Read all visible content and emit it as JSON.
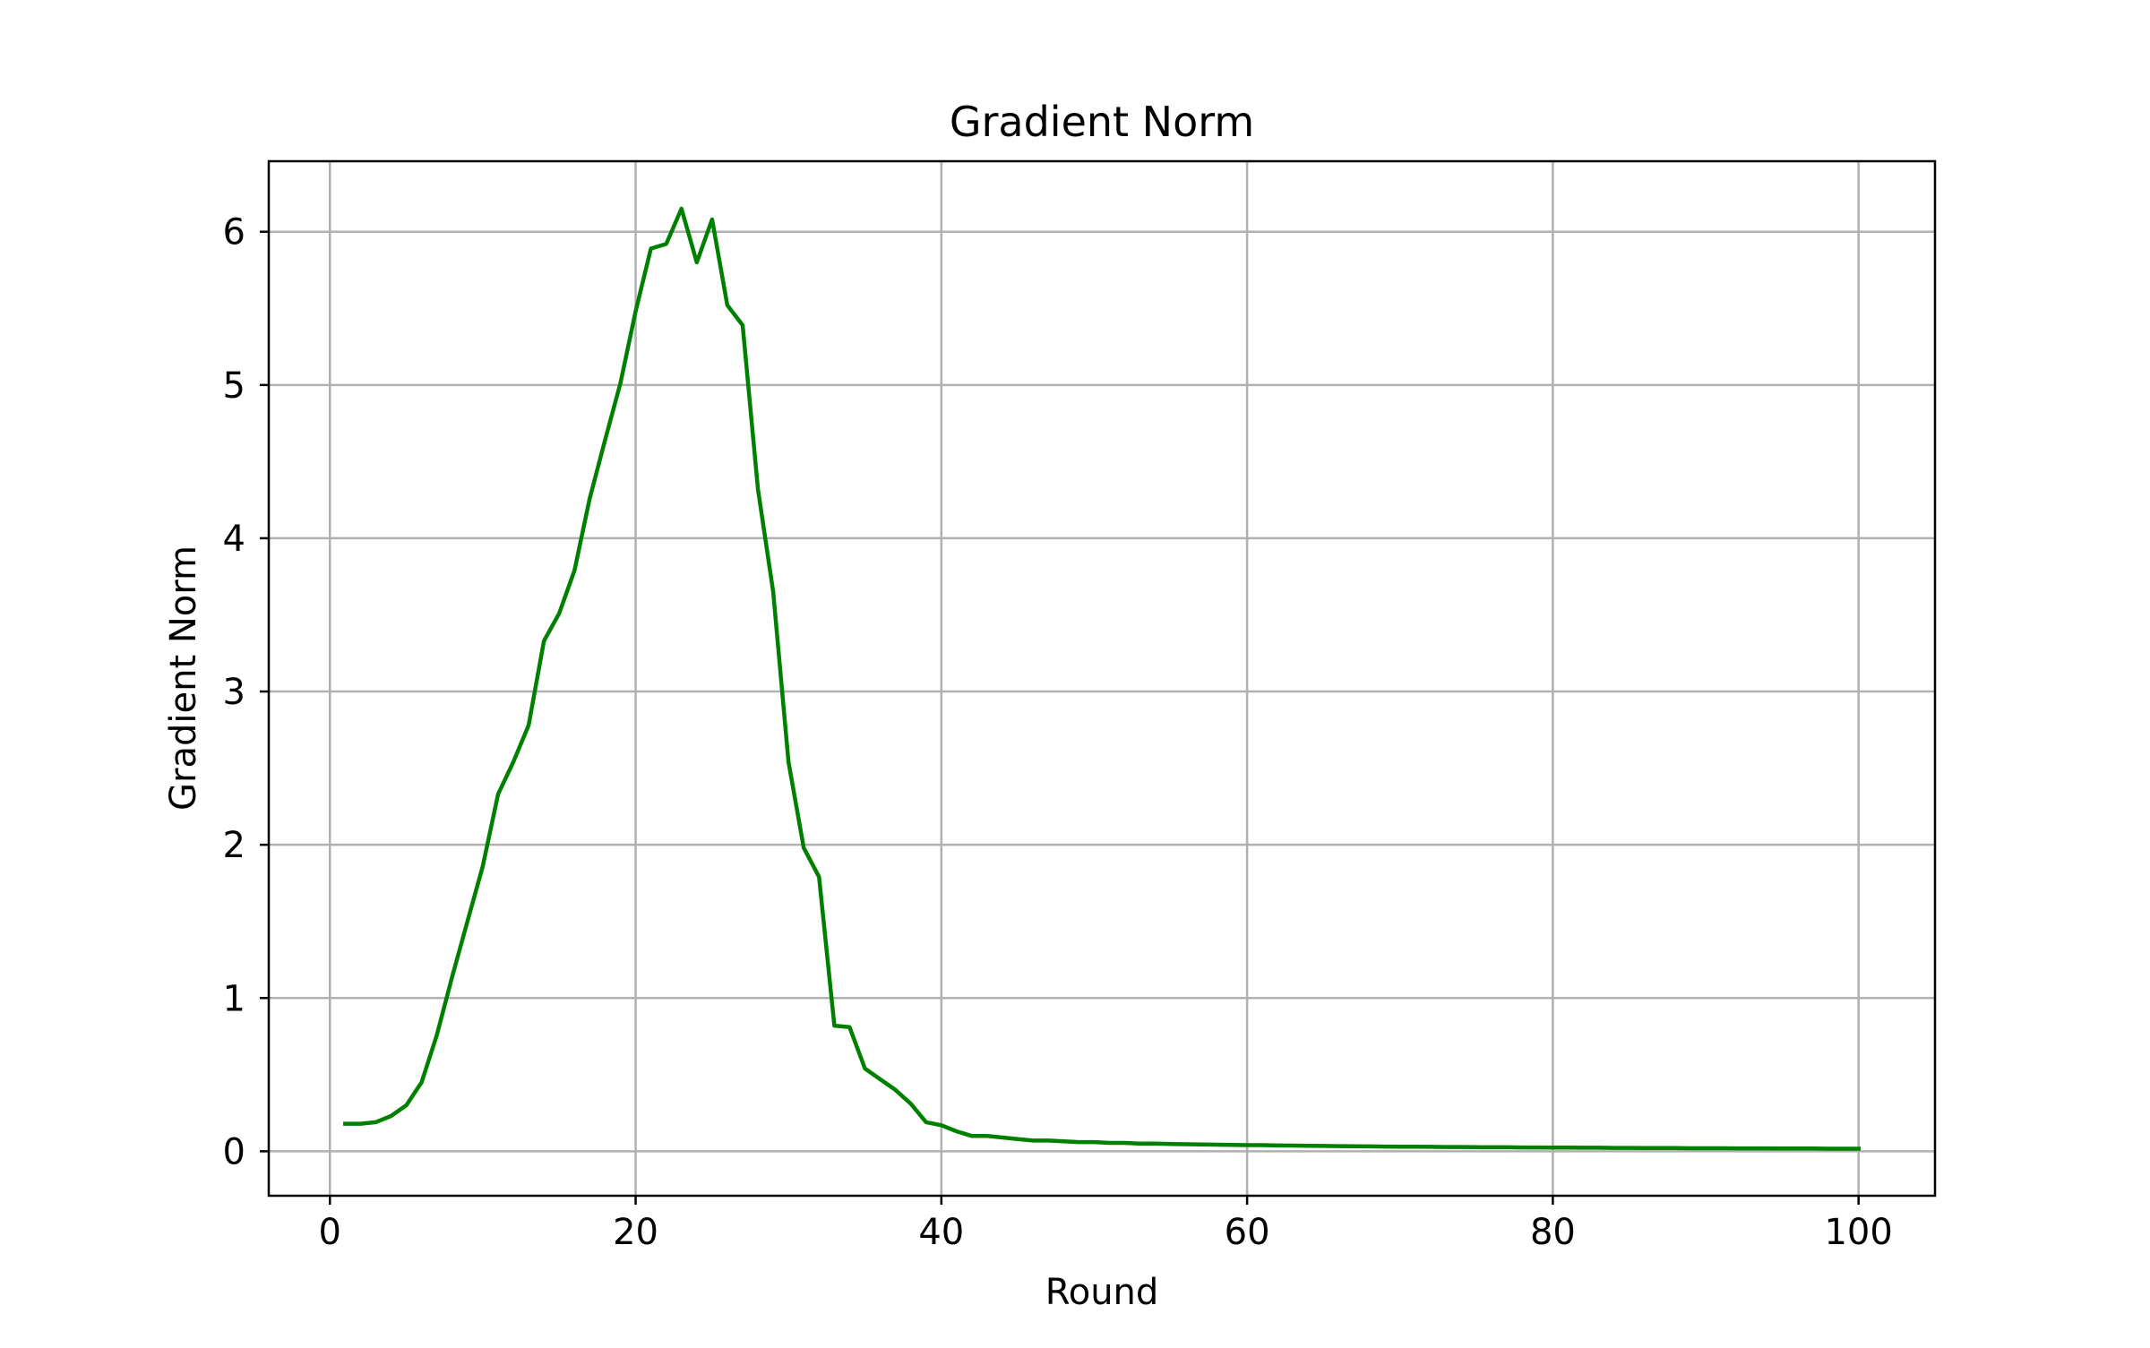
{
  "chart_data": {
    "type": "line",
    "title": "Gradient Norm",
    "xlabel": "Round",
    "ylabel": "Gradient Norm",
    "xlim": [
      -4,
      105
    ],
    "ylim": [
      -0.29,
      6.46
    ],
    "xticks": [
      0,
      20,
      40,
      60,
      80,
      100
    ],
    "yticks": [
      0,
      1,
      2,
      3,
      4,
      5,
      6
    ],
    "grid": true,
    "legend": "none",
    "series": [
      {
        "color": "#008000",
        "x": [
          1,
          2,
          3,
          4,
          5,
          6,
          7,
          8,
          9,
          10,
          11,
          12,
          13,
          14,
          15,
          16,
          17,
          18,
          19,
          20,
          21,
          22,
          23,
          24,
          25,
          26,
          27,
          28,
          29,
          30,
          31,
          32,
          33,
          34,
          35,
          36,
          37,
          38,
          39,
          40,
          41,
          42,
          43,
          44,
          45,
          46,
          47,
          48,
          49,
          50,
          51,
          52,
          53,
          54,
          55,
          56,
          57,
          58,
          59,
          60,
          61,
          62,
          63,
          64,
          65,
          66,
          67,
          68,
          69,
          70,
          71,
          72,
          73,
          74,
          75,
          76,
          77,
          78,
          79,
          80,
          81,
          82,
          83,
          84,
          85,
          86,
          87,
          88,
          89,
          90,
          91,
          92,
          93,
          94,
          95,
          96,
          97,
          98,
          99,
          100
        ],
        "y": [
          0.18,
          0.18,
          0.19,
          0.23,
          0.3,
          0.45,
          0.76,
          1.14,
          1.5,
          1.86,
          2.33,
          2.54,
          2.78,
          3.33,
          3.51,
          3.79,
          4.26,
          4.64,
          5.01,
          5.48,
          5.89,
          5.92,
          6.15,
          5.8,
          6.08,
          5.52,
          5.39,
          4.32,
          3.65,
          2.54,
          1.98,
          1.79,
          0.82,
          0.81,
          0.54,
          0.47,
          0.4,
          0.31,
          0.19,
          0.17,
          0.13,
          0.1,
          0.1,
          0.09,
          0.08,
          0.07,
          0.07,
          0.065,
          0.06,
          0.06,
          0.055,
          0.055,
          0.05,
          0.05,
          0.048,
          0.046,
          0.045,
          0.043,
          0.042,
          0.04,
          0.04,
          0.038,
          0.037,
          0.036,
          0.035,
          0.034,
          0.033,
          0.032,
          0.031,
          0.03,
          0.03,
          0.029,
          0.028,
          0.028,
          0.027,
          0.026,
          0.026,
          0.025,
          0.025,
          0.024,
          0.024,
          0.023,
          0.023,
          0.022,
          0.022,
          0.021,
          0.021,
          0.021,
          0.02,
          0.02,
          0.02,
          0.019,
          0.019,
          0.019,
          0.018,
          0.018,
          0.018,
          0.017,
          0.017,
          0.017
        ]
      }
    ]
  }
}
